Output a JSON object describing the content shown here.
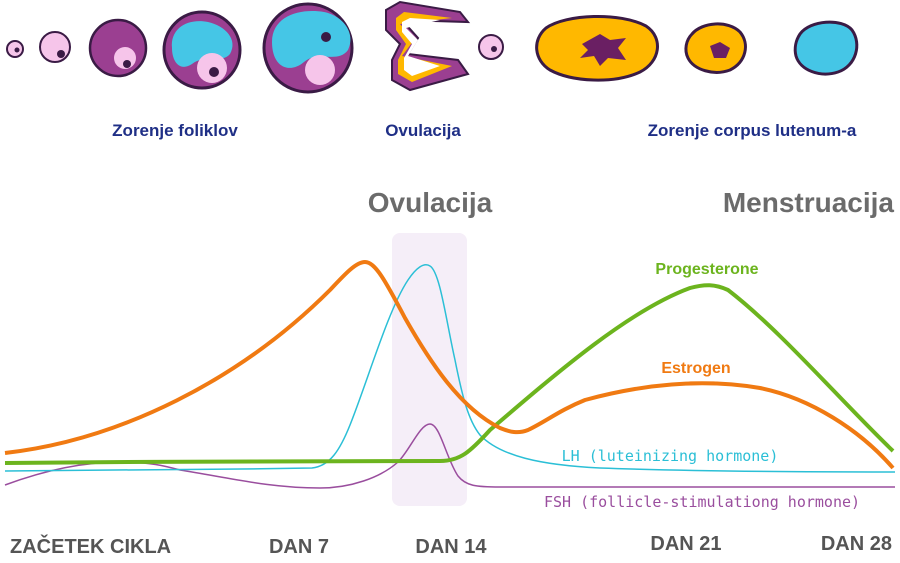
{
  "stages": {
    "follicle_maturation": "Zorenje foliklov",
    "ovulation": "Ovulacija",
    "corpus_luteum_maturation": "Zorenje corpus lutenum-a"
  },
  "phases": {
    "ovulation": "Ovulacija",
    "menstruation": "Menstruacija"
  },
  "hormones": {
    "progesterone": "Progesterone",
    "estrogen": "Estrogen",
    "lh": "LH (luteinizing hormone)",
    "fsh": "FSH (follicle-stimulationg hormone)"
  },
  "days": {
    "start": "ZAČETEK CIKLA",
    "day7": "DAN 7",
    "day14": "DAN 14",
    "day21": "DAN 21",
    "day28": "DAN 28"
  },
  "colors": {
    "label_blue": "#1f2f86",
    "phase_grey": "#6b6b6b",
    "estrogen": "#f07a12",
    "progesterone": "#6cb41e",
    "lh": "#2bbfd6",
    "fsh": "#9a4e9e",
    "follicle_purple": "#9b3f91",
    "follicle_pink": "#f6c5ea",
    "follicle_cyan": "#45c6e6",
    "corpus_yellow": "#ffb800",
    "ovulation_band": "#f5eef8"
  }
}
